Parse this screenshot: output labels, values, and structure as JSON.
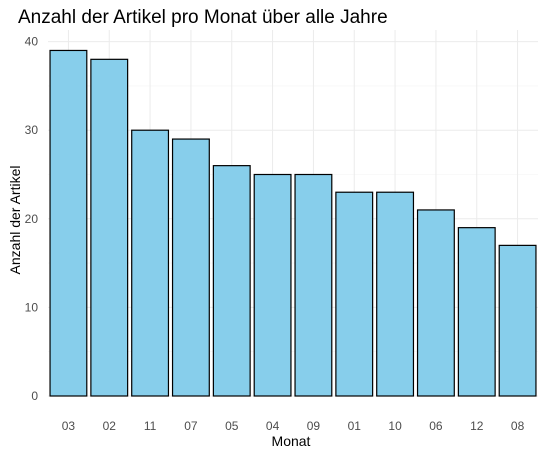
{
  "chart_data": {
    "type": "bar",
    "title": "Anzahl der Artikel pro Monat über alle Jahre",
    "xlabel": "Monat",
    "ylabel": "Anzahl der Artikel",
    "categories": [
      "03",
      "02",
      "11",
      "07",
      "05",
      "04",
      "09",
      "01",
      "10",
      "06",
      "12",
      "08"
    ],
    "values": [
      39,
      38,
      30,
      29,
      26,
      25,
      25,
      23,
      23,
      21,
      19,
      17
    ],
    "ylim": [
      0,
      41
    ],
    "yticks": [
      "0",
      "10",
      "20",
      "30",
      "40"
    ],
    "bar_color": "#87CEEB",
    "bar_outline": "#000000",
    "grid": true,
    "legend": false
  }
}
